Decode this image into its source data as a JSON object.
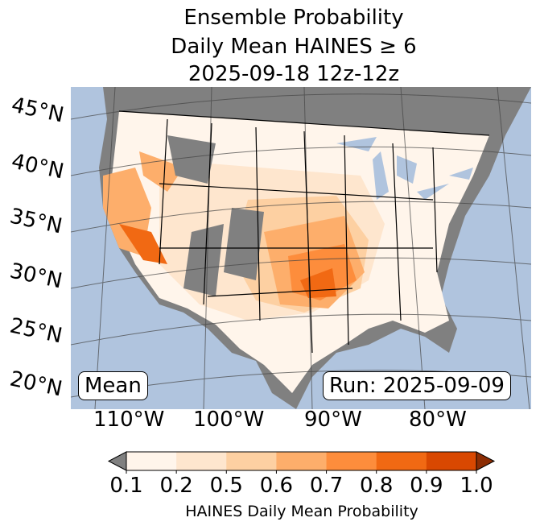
{
  "title": {
    "line1": "Ensemble Probability",
    "line2": "Daily Mean HAINES ≥ 6",
    "line3": "2025-09-18 12z-12z"
  },
  "map": {
    "lat_labels": [
      "45°N",
      "40°N",
      "35°N",
      "30°N",
      "25°N",
      "20°N"
    ],
    "lon_labels": [
      "110°W",
      "100°W",
      "90°W",
      "80°W"
    ],
    "mean_label": "Mean",
    "run_label": "Run: 2025-09-09",
    "colors": {
      "ocean": "#b0c4de",
      "missing": "#808080",
      "land_low": "#ffffff"
    }
  },
  "colorbar": {
    "ticks": [
      "0.1",
      "0.2",
      "0.5",
      "0.6",
      "0.7",
      "0.8",
      "0.9",
      "1.0"
    ],
    "label": "HAINES Daily Mean Probability",
    "under_color": "#808080",
    "over_color": "#8c2d04",
    "colors": [
      "#fff5eb",
      "#fee6ce",
      "#fdd0a2",
      "#fdae6b",
      "#fd8d3c",
      "#f16913",
      "#d94801"
    ]
  }
}
